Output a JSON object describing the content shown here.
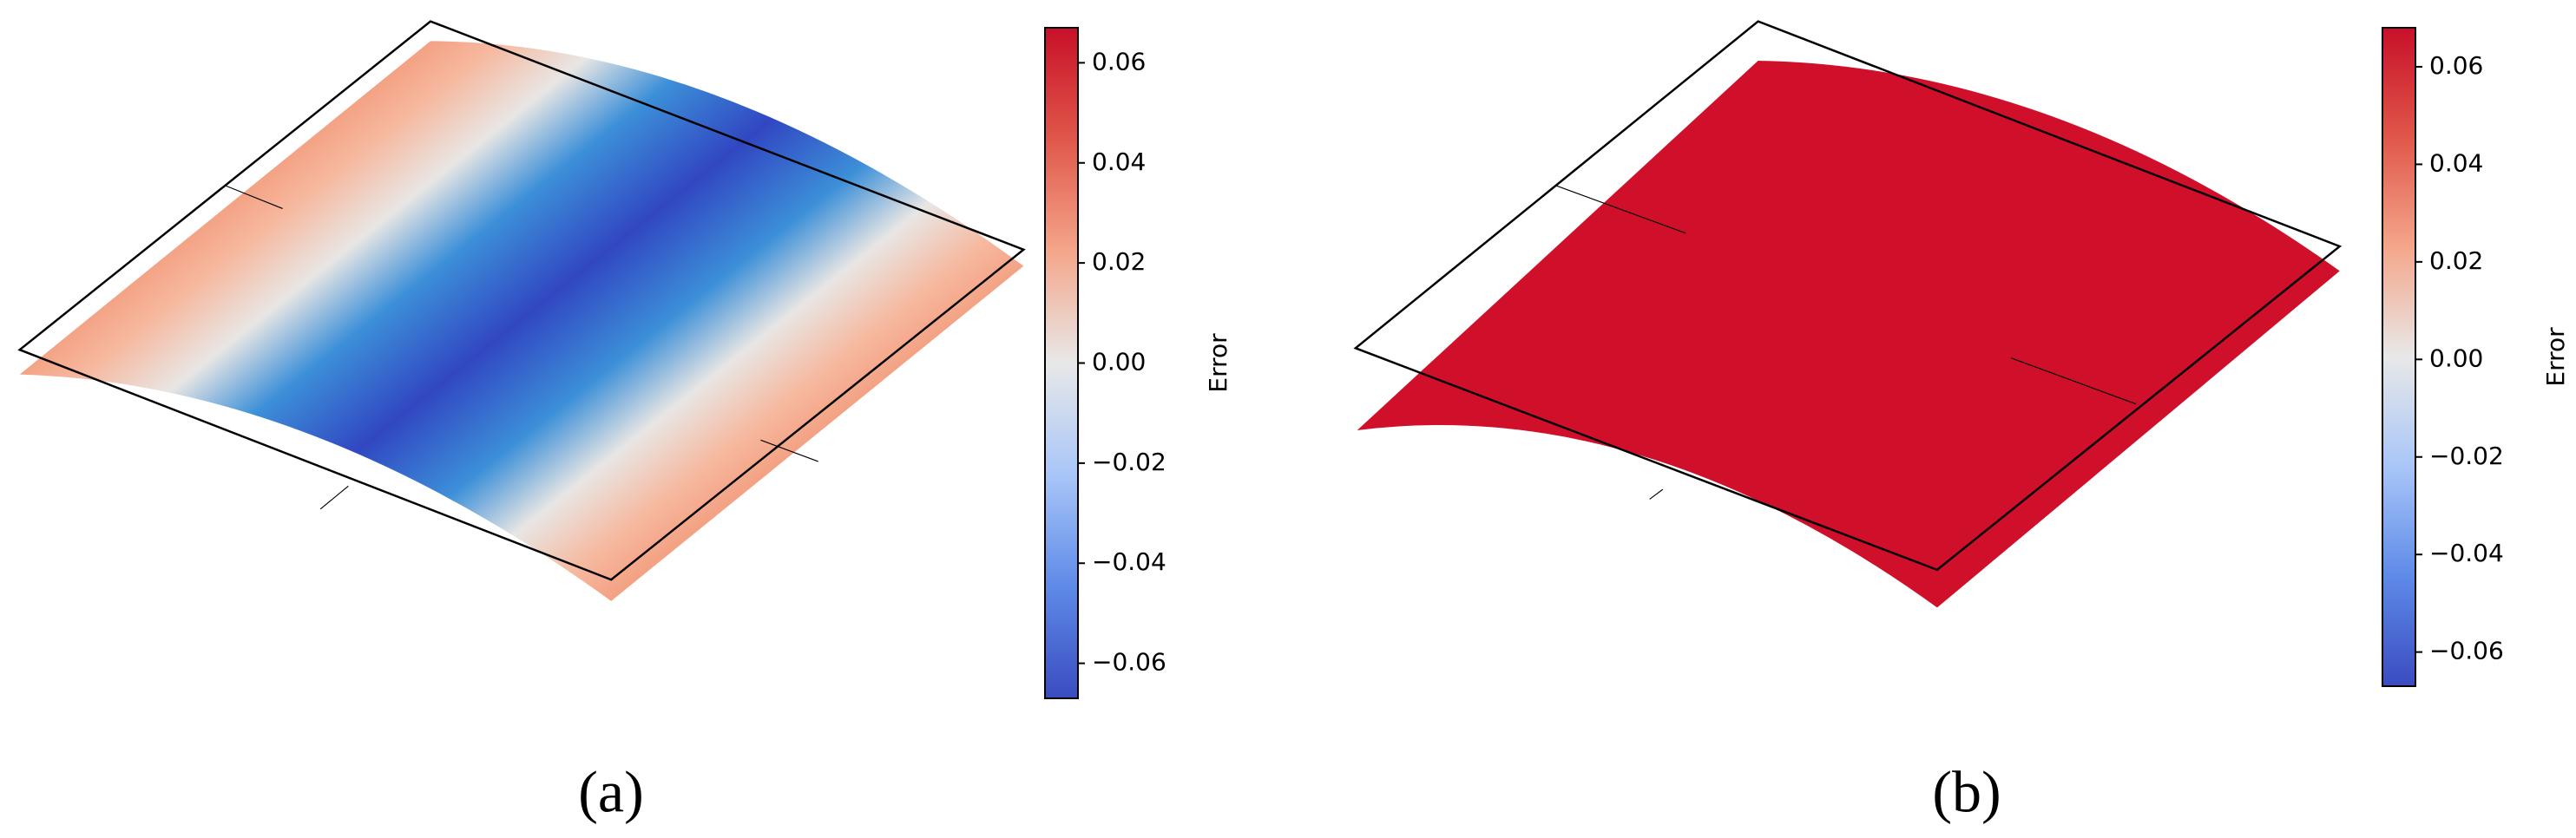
{
  "chart_data": [
    {
      "type": "surface",
      "caption": "(a)",
      "colorbar_label": "Error",
      "ylim": [
        -0.067,
        0.067
      ],
      "yticks": [
        {
          "value": 0.06,
          "label": "0.06"
        },
        {
          "value": 0.04,
          "label": "0.04"
        },
        {
          "value": 0.02,
          "label": "0.02"
        },
        {
          "value": 0,
          "label": "0.00"
        },
        {
          "value": -0.02,
          "label": "−0.02"
        },
        {
          "value": -0.04,
          "label": "−0.04"
        },
        {
          "value": -0.06,
          "label": "−0.06"
        }
      ],
      "colormap": [
        "#3a4cc0",
        "#5e8ae8",
        "#a9c6f8",
        "#e8e8e8",
        "#f4a68b",
        "#e0574a",
        "#c81028"
      ]
    },
    {
      "type": "surface",
      "caption": "(b)",
      "colorbar_label": "Error",
      "ylim": [
        -0.067,
        0.068
      ],
      "yticks": [
        {
          "value": 0.06,
          "label": "0.06"
        },
        {
          "value": 0.04,
          "label": "0.04"
        },
        {
          "value": 0.02,
          "label": "0.02"
        },
        {
          "value": 0,
          "label": "0.00"
        },
        {
          "value": -0.02,
          "label": "−0.02"
        },
        {
          "value": -0.04,
          "label": "−0.04"
        },
        {
          "value": -0.06,
          "label": "−0.06"
        }
      ],
      "colormap": [
        "#3a4cc0",
        "#5e8ae8",
        "#a9c6f8",
        "#e8e8e8",
        "#f4a68b",
        "#e0574a",
        "#c81028"
      ]
    }
  ]
}
